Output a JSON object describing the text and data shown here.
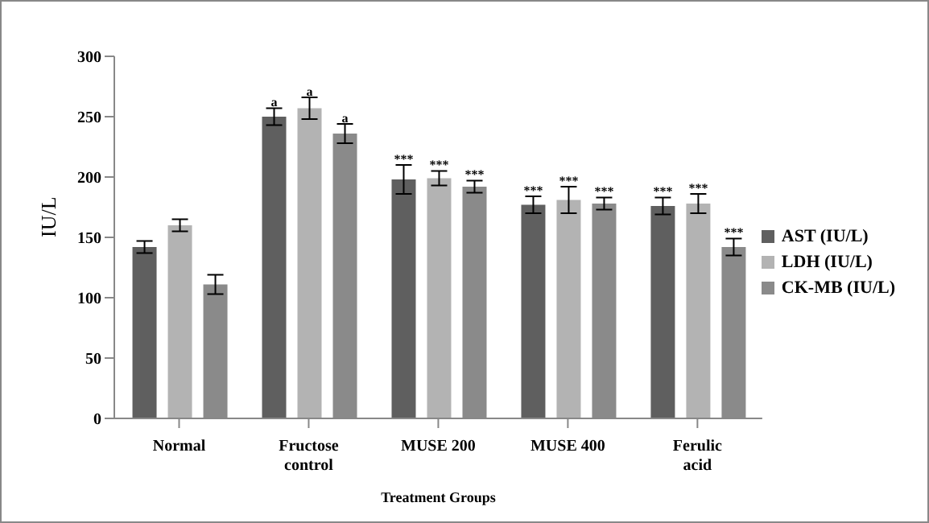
{
  "chart_data": {
    "type": "bar",
    "xlabel": "Treatment Groups",
    "ylabel": "IU/L",
    "categories": [
      "Normal",
      "Fructose control",
      "MUSE 200",
      "MUSE 400",
      "Ferulic acid"
    ],
    "series": [
      {
        "name": "AST (IU/L)",
        "color": "#5f5f5f",
        "values": [
          142,
          250,
          198,
          177,
          176
        ],
        "errors": [
          5,
          7,
          12,
          7,
          7
        ],
        "value_labels": [
          null,
          "a",
          "***",
          "***",
          "***"
        ]
      },
      {
        "name": "LDH (IU/L)",
        "color": "#b3b3b3",
        "values": [
          160,
          257,
          199,
          181,
          178
        ],
        "errors": [
          5,
          9,
          6,
          11,
          8
        ],
        "value_labels": [
          null,
          "a",
          "***",
          "***",
          "***"
        ]
      },
      {
        "name": "CK-MB (IU/L)",
        "color": "#8a8a8a",
        "values": [
          111,
          236,
          192,
          178,
          142
        ],
        "errors": [
          8,
          8,
          5,
          5,
          7
        ],
        "value_labels": [
          null,
          "a",
          "***",
          "***",
          "***"
        ]
      }
    ],
    "ylim": [
      0,
      300
    ],
    "yticks": [
      0,
      50,
      100,
      150,
      200,
      250,
      300
    ],
    "grid": false,
    "legend": "right"
  }
}
